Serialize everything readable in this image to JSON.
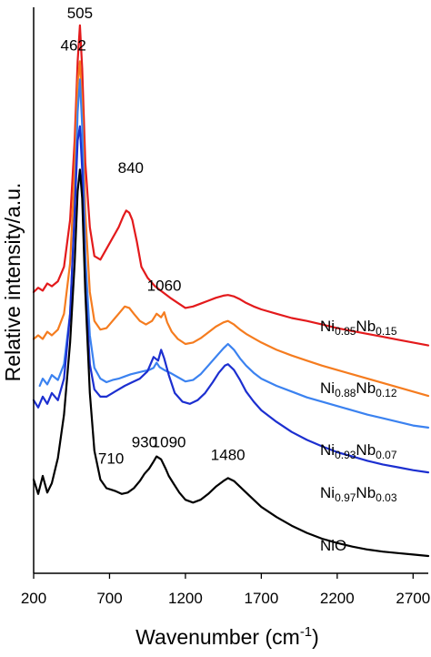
{
  "chart_data": {
    "type": "line",
    "title": "",
    "xlabel": "Wavenumber (cm",
    "xlabel_sup": "-1",
    "xlabel_close": ")",
    "ylabel": "Relative intensity/a.u.",
    "xlim": [
      200,
      2800
    ],
    "xticks": [
      200,
      700,
      1200,
      1700,
      2200,
      2700
    ],
    "y_ticks_shown": false,
    "grid": false,
    "legend": "inline labels at right",
    "series": [
      {
        "name": "Ni0.85Nb0.15",
        "label_parts": [
          [
            "Ni",
            ""
          ],
          [
            "0.85",
            "sub"
          ],
          [
            "Nb",
            ""
          ],
          [
            "0.15",
            "sub"
          ]
        ],
        "color": "#e31a1c",
        "x": [
          200,
          230,
          260,
          290,
          320,
          360,
          400,
          440,
          470,
          490,
          505,
          520,
          540,
          570,
          600,
          640,
          680,
          720,
          760,
          790,
          810,
          830,
          850,
          880,
          910,
          950,
          1000,
          1050,
          1100,
          1150,
          1200,
          1250,
          1300,
          1350,
          1400,
          1450,
          1480,
          1520,
          1560,
          1600,
          1650,
          1700,
          1800,
          1900,
          2000,
          2100,
          2200,
          2300,
          2400,
          2500,
          2600,
          2700,
          2800
        ],
        "y": [
          3.5,
          3.56,
          3.52,
          3.62,
          3.58,
          3.65,
          3.85,
          4.5,
          5.6,
          6.7,
          7.2,
          6.6,
          5.3,
          4.4,
          4.0,
          3.95,
          4.1,
          4.25,
          4.4,
          4.55,
          4.63,
          4.6,
          4.5,
          4.2,
          3.85,
          3.7,
          3.58,
          3.5,
          3.42,
          3.35,
          3.28,
          3.3,
          3.34,
          3.38,
          3.42,
          3.45,
          3.46,
          3.44,
          3.4,
          3.35,
          3.3,
          3.26,
          3.2,
          3.14,
          3.1,
          3.05,
          3.0,
          2.96,
          2.92,
          2.88,
          2.84,
          2.8,
          2.76
        ]
      },
      {
        "name": "Ni0.88Nb0.12",
        "label_parts": [
          [
            "Ni",
            ""
          ],
          [
            "0.88",
            "sub"
          ],
          [
            "Nb",
            ""
          ],
          [
            "0.12",
            "sub"
          ]
        ],
        "color": "#f57c1f",
        "x": [
          200,
          230,
          260,
          290,
          320,
          360,
          400,
          440,
          470,
          490,
          505,
          520,
          540,
          570,
          600,
          640,
          680,
          720,
          760,
          800,
          830,
          860,
          900,
          940,
          980,
          1010,
          1040,
          1060,
          1080,
          1110,
          1150,
          1200,
          1250,
          1300,
          1350,
          1400,
          1450,
          1480,
          1520,
          1560,
          1600,
          1650,
          1700,
          1800,
          1900,
          2000,
          2100,
          2200,
          2300,
          2400,
          2500,
          2600,
          2700,
          2800
        ],
        "y": [
          2.85,
          2.9,
          2.85,
          2.95,
          2.9,
          2.98,
          3.2,
          3.9,
          5.2,
          6.4,
          6.7,
          6.1,
          4.6,
          3.5,
          3.1,
          2.98,
          3.0,
          3.1,
          3.2,
          3.3,
          3.28,
          3.2,
          3.1,
          3.05,
          3.1,
          3.2,
          3.15,
          3.22,
          3.08,
          2.95,
          2.85,
          2.78,
          2.8,
          2.86,
          2.94,
          3.02,
          3.08,
          3.1,
          3.05,
          2.98,
          2.92,
          2.86,
          2.8,
          2.7,
          2.62,
          2.55,
          2.48,
          2.42,
          2.36,
          2.3,
          2.24,
          2.18,
          2.12,
          2.06
        ]
      },
      {
        "name": "Ni0.93Nb0.07",
        "label_parts": [
          [
            "Ni",
            ""
          ],
          [
            "0.93",
            "sub"
          ],
          [
            "Nb",
            ""
          ],
          [
            "0.07",
            "sub"
          ]
        ],
        "color": "#3b82f0",
        "x": [
          240,
          260,
          290,
          320,
          360,
          400,
          440,
          470,
          490,
          505,
          520,
          540,
          570,
          600,
          640,
          680,
          720,
          760,
          800,
          840,
          880,
          920,
          960,
          990,
          1010,
          1030,
          1060,
          1100,
          1150,
          1200,
          1250,
          1300,
          1350,
          1400,
          1450,
          1480,
          1520,
          1560,
          1600,
          1650,
          1700,
          1800,
          1900,
          2000,
          2100,
          2200,
          2300,
          2400,
          2500,
          2600,
          2700,
          2800
        ],
        "y": [
          2.2,
          2.3,
          2.22,
          2.35,
          2.28,
          2.5,
          3.2,
          4.6,
          6.0,
          6.45,
          5.8,
          4.0,
          2.9,
          2.45,
          2.3,
          2.25,
          2.28,
          2.3,
          2.33,
          2.36,
          2.38,
          2.4,
          2.42,
          2.45,
          2.52,
          2.46,
          2.42,
          2.38,
          2.32,
          2.26,
          2.28,
          2.36,
          2.48,
          2.6,
          2.72,
          2.78,
          2.7,
          2.58,
          2.48,
          2.38,
          2.3,
          2.2,
          2.12,
          2.04,
          1.98,
          1.92,
          1.86,
          1.8,
          1.75,
          1.7,
          1.65,
          1.62
        ]
      },
      {
        "name": "Ni0.97Nb0.03",
        "label_parts": [
          [
            "Ni",
            ""
          ],
          [
            "0.97",
            "sub"
          ],
          [
            "Nb",
            ""
          ],
          [
            "0.03",
            "sub"
          ]
        ],
        "color": "#1c2fd0",
        "x": [
          200,
          230,
          260,
          290,
          320,
          360,
          400,
          440,
          470,
          490,
          505,
          520,
          540,
          570,
          600,
          640,
          680,
          720,
          760,
          800,
          850,
          900,
          950,
          990,
          1020,
          1040,
          1060,
          1090,
          1130,
          1180,
          1230,
          1280,
          1330,
          1380,
          1420,
          1460,
          1480,
          1520,
          1560,
          1600,
          1650,
          1700,
          1800,
          1900,
          2000,
          2100,
          2200,
          2300,
          2400,
          2500,
          2600,
          2700,
          2800
        ],
        "y": [
          2.0,
          1.9,
          2.05,
          1.95,
          2.1,
          2.0,
          2.3,
          3.2,
          4.6,
          5.6,
          5.8,
          5.2,
          3.6,
          2.5,
          2.15,
          2.05,
          2.05,
          2.1,
          2.15,
          2.2,
          2.25,
          2.3,
          2.4,
          2.6,
          2.55,
          2.7,
          2.58,
          2.35,
          2.1,
          1.98,
          1.95,
          2.0,
          2.1,
          2.25,
          2.38,
          2.48,
          2.5,
          2.42,
          2.28,
          2.12,
          1.98,
          1.86,
          1.7,
          1.56,
          1.45,
          1.36,
          1.28,
          1.22,
          1.16,
          1.11,
          1.07,
          1.03,
          1.0
        ]
      },
      {
        "name": "NiO",
        "label_parts": [
          [
            "NiO",
            ""
          ]
        ],
        "color": "#000000",
        "x": [
          200,
          230,
          260,
          290,
          320,
          360,
          400,
          440,
          470,
          490,
          505,
          520,
          540,
          570,
          600,
          640,
          680,
          710,
          740,
          780,
          820,
          860,
          900,
          930,
          960,
          990,
          1010,
          1040,
          1070,
          1090,
          1120,
          1160,
          1200,
          1250,
          1300,
          1350,
          1400,
          1450,
          1480,
          1520,
          1560,
          1600,
          1650,
          1700,
          1800,
          1900,
          2000,
          2100,
          2200,
          2300,
          2400,
          2500,
          2600,
          2700,
          2800
        ],
        "y": [
          0.9,
          0.7,
          0.95,
          0.72,
          0.85,
          1.2,
          1.8,
          2.8,
          3.9,
          4.9,
          5.2,
          4.8,
          3.5,
          2.1,
          1.3,
          0.9,
          0.78,
          0.76,
          0.74,
          0.7,
          0.72,
          0.78,
          0.88,
          0.98,
          1.05,
          1.15,
          1.22,
          1.18,
          1.05,
          0.95,
          0.85,
          0.72,
          0.62,
          0.58,
          0.62,
          0.7,
          0.8,
          0.88,
          0.92,
          0.88,
          0.8,
          0.72,
          0.62,
          0.52,
          0.38,
          0.26,
          0.16,
          0.08,
          0.02,
          -0.03,
          -0.07,
          -0.1,
          -0.12,
          -0.14,
          -0.16
        ]
      }
    ],
    "annotations": [
      {
        "text": "505",
        "x": 505,
        "y": 7.2
      },
      {
        "text": "462",
        "x": 462,
        "y": 6.75
      },
      {
        "text": "840",
        "x": 840,
        "y": 5.05
      },
      {
        "text": "1060",
        "x": 1060,
        "y": 3.42
      },
      {
        "text": "710",
        "x": 710,
        "y": 1.02
      },
      {
        "text": "930",
        "x": 930,
        "y": 1.25
      },
      {
        "text": "1090",
        "x": 1090,
        "y": 1.25
      },
      {
        "text": "1480",
        "x": 1480,
        "y": 1.07
      }
    ]
  }
}
